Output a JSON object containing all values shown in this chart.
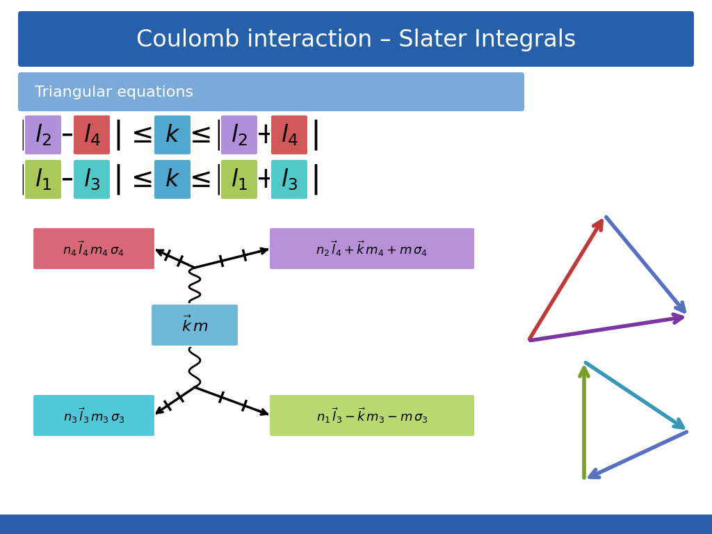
{
  "title": "Coulomb interaction – Slater Integrals",
  "title_bg_top": "#1a4080",
  "title_bg_bot": "#3a7ac8",
  "title_fg": "white",
  "subtitle": "Triangular equations",
  "subtitle_bg": "#7aaad8",
  "subtitle_fg": "white",
  "bg_color": "white",
  "bottom_bar_color": "#2a5ea8",
  "eq1": {
    "l2_color": "#b090d8",
    "l4_color": "#d05858",
    "k_color": "#50a8d0",
    "pl2_color": "#b090d8",
    "pl4_color": "#d05858"
  },
  "eq2": {
    "l1_color": "#a8c858",
    "l3_color": "#50c8c8",
    "k_color": "#50a8d0",
    "pl1_color": "#a8c858",
    "pl3_color": "#50c8c8"
  },
  "box_n4": "#d86878",
  "box_n2": "#b890d8",
  "box_km": "#70b8d8",
  "box_n3": "#50c8d8",
  "box_n1": "#b8d870",
  "tri1_colors": [
    "#c03838",
    "#5870c0",
    "#7838a0"
  ],
  "tri2_colors": [
    "#78a028",
    "#3898b8",
    "#5870c0"
  ]
}
